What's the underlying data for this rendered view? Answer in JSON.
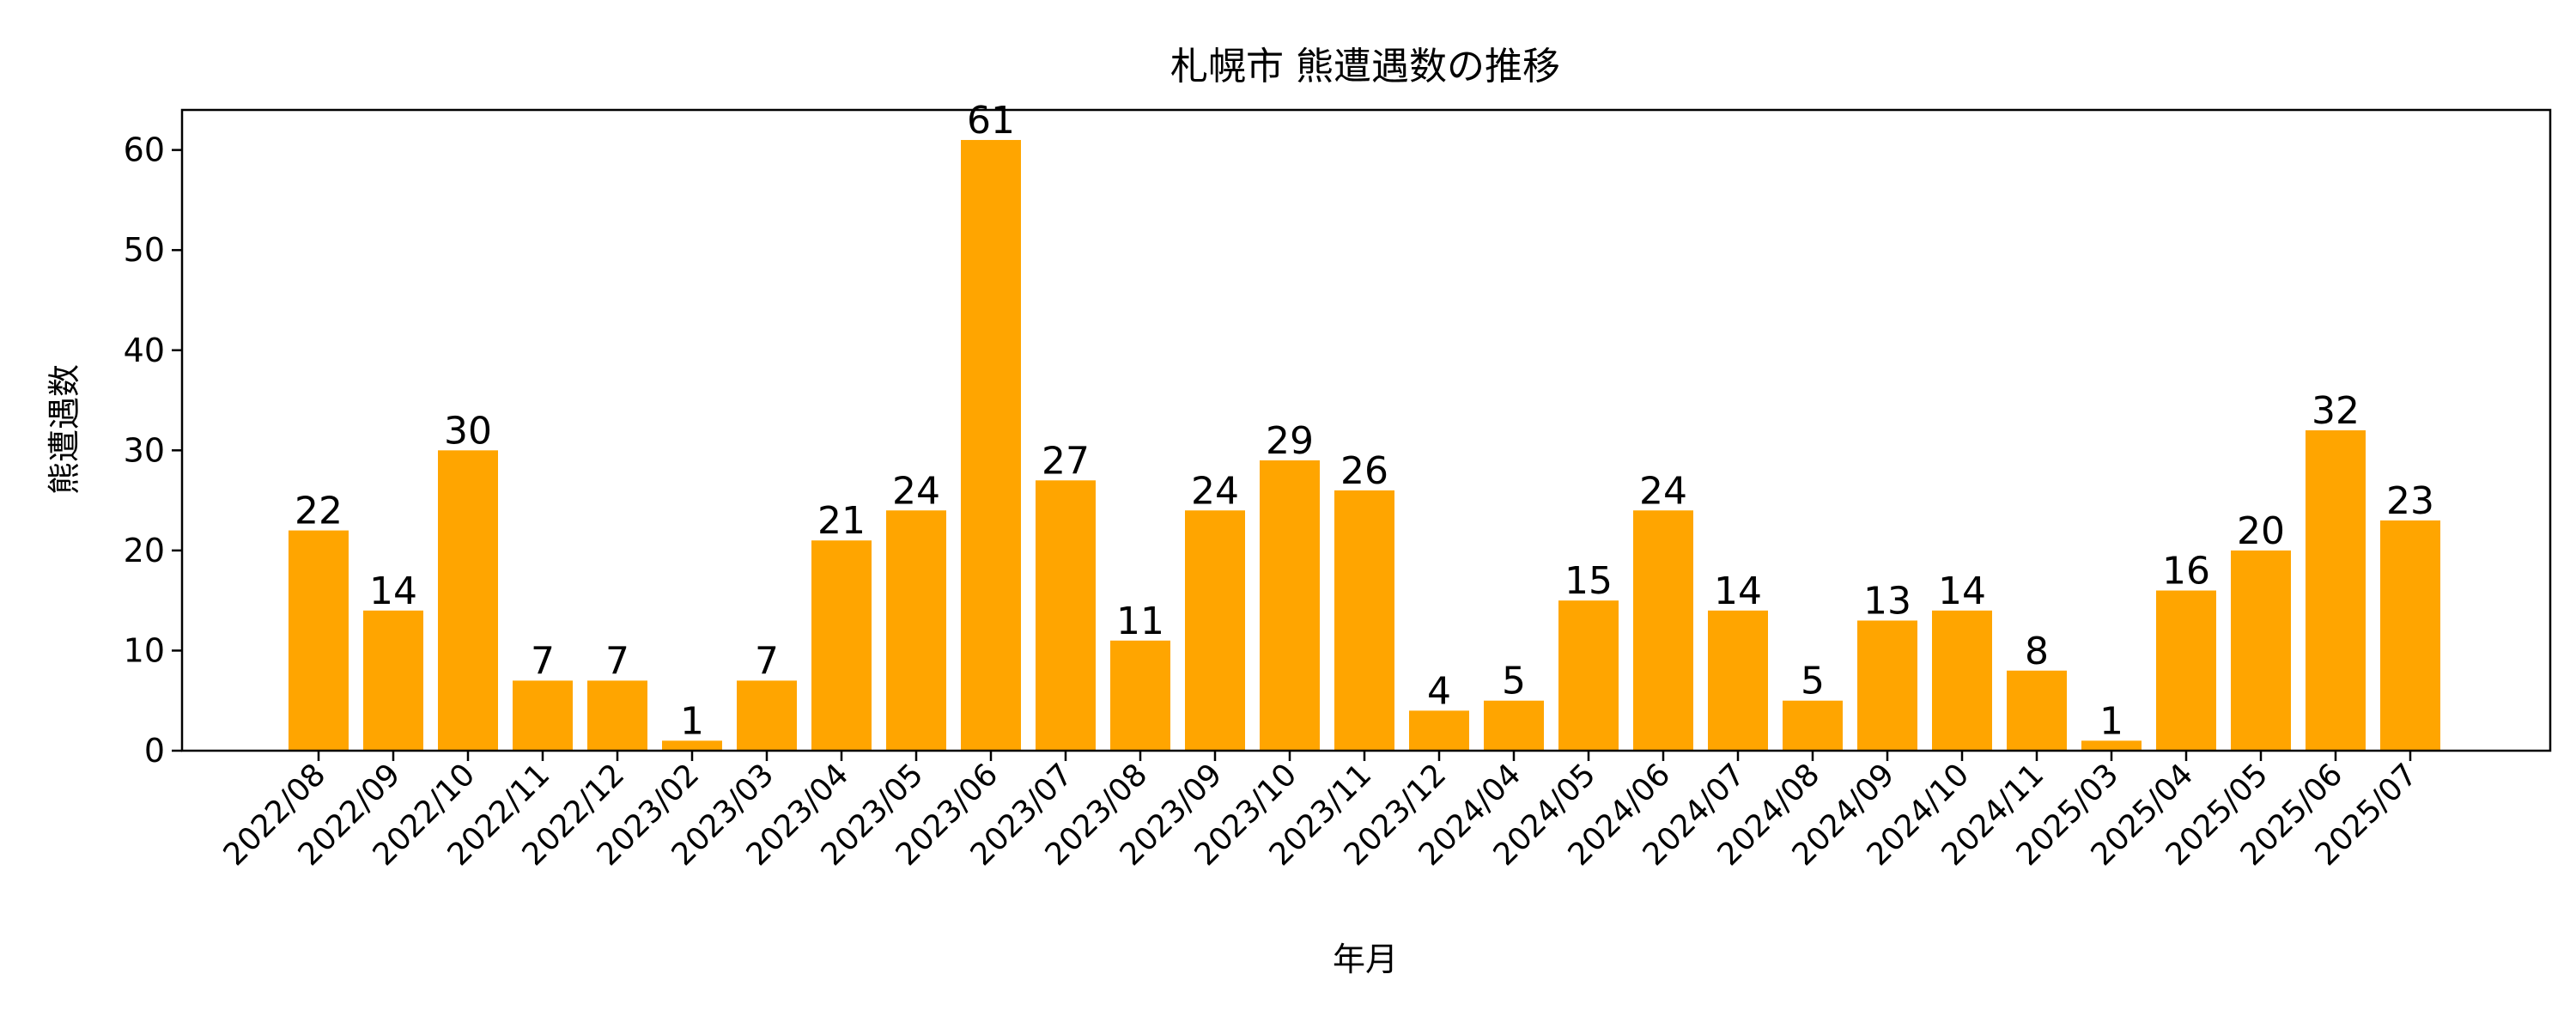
{
  "chart_data": {
    "type": "bar",
    "title": "札幌市 熊遭遇数の推移",
    "xlabel": "年月",
    "ylabel": "熊遭遇数",
    "categories": [
      "2022/08",
      "2022/09",
      "2022/10",
      "2022/11",
      "2022/12",
      "2023/02",
      "2023/03",
      "2023/04",
      "2023/05",
      "2023/06",
      "2023/07",
      "2023/08",
      "2023/09",
      "2023/10",
      "2023/11",
      "2023/12",
      "2024/04",
      "2024/05",
      "2024/06",
      "2024/07",
      "2024/08",
      "2024/09",
      "2024/10",
      "2024/11",
      "2025/03",
      "2025/04",
      "2025/05",
      "2025/06",
      "2025/07"
    ],
    "values": [
      22,
      14,
      30,
      7,
      7,
      1,
      7,
      21,
      24,
      61,
      27,
      11,
      24,
      29,
      26,
      4,
      5,
      15,
      24,
      14,
      5,
      13,
      14,
      8,
      1,
      16,
      20,
      32,
      23
    ],
    "ylim": [
      0,
      64
    ],
    "yticks": [
      0,
      10,
      20,
      30,
      40,
      50,
      60
    ],
    "grid": false,
    "legend": "none",
    "data_labels": true,
    "bar_color": "#FFA500"
  }
}
